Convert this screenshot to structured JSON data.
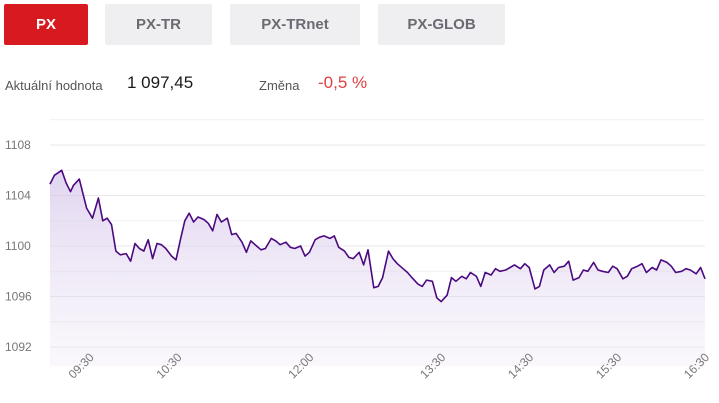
{
  "tabs": [
    {
      "label": "PX",
      "active": true
    },
    {
      "label": "PX-TR",
      "active": false
    },
    {
      "label": "PX-TRnet",
      "active": false
    },
    {
      "label": "PX-GLOB",
      "active": false
    }
  ],
  "summary": {
    "value_label": "Aktuální hodnota",
    "value": "1 097,45",
    "change_label": "Změna",
    "change": "-0,5 %"
  },
  "colors": {
    "accent": "#d71920",
    "line": "#4b0a7f",
    "negative": "#e04040",
    "tab_bg": "#efeff2"
  },
  "chart_data": {
    "type": "area",
    "title": "",
    "xlabel": "",
    "ylabel": "",
    "ylim": [
      1090.5,
      1110
    ],
    "y_ticks": [
      1092,
      1096,
      1100,
      1104,
      1108
    ],
    "x_range": [
      "09:03",
      "16:30"
    ],
    "x_ticks": [
      "09:30",
      "10:30",
      "12:00",
      "13:30",
      "14:30",
      "15:30",
      "16:30"
    ],
    "grid": true,
    "series": [
      {
        "x": [
          "09:03",
          "09:06",
          "09:11",
          "09:14",
          "09:17",
          "09:19",
          "09:23",
          "09:28",
          "09:32",
          "09:36",
          "09:39",
          "09:42",
          "09:45",
          "09:48",
          "09:51",
          "09:55",
          "09:58",
          "10:01",
          "10:04",
          "10:07",
          "10:10",
          "10:13",
          "10:16",
          "10:19",
          "10:22",
          "10:26",
          "10:29",
          "10:32",
          "10:35",
          "10:38",
          "10:41",
          "10:44",
          "10:48",
          "10:51",
          "10:54",
          "10:57",
          "11:00",
          "11:04",
          "11:07",
          "11:10",
          "11:14",
          "11:17",
          "11:20",
          "11:24",
          "11:27",
          "11:30",
          "11:34",
          "11:37",
          "11:40",
          "11:44",
          "11:47",
          "11:50",
          "11:54",
          "11:57",
          "12:00",
          "12:04",
          "12:07",
          "12:10",
          "12:14",
          "12:17",
          "12:20",
          "12:24",
          "12:27",
          "12:30",
          "12:34",
          "12:37",
          "12:40",
          "12:44",
          "12:47",
          "12:50",
          "12:54",
          "12:57",
          "13:00",
          "13:04",
          "13:07",
          "13:10",
          "13:14",
          "13:17",
          "13:20",
          "13:24",
          "13:27",
          "13:30",
          "13:34",
          "13:37",
          "13:40",
          "13:44",
          "13:47",
          "13:50",
          "13:54",
          "13:57",
          "14:00",
          "14:04",
          "14:07",
          "14:10",
          "14:14",
          "14:17",
          "14:20",
          "14:24",
          "14:27",
          "14:30",
          "14:34",
          "14:37",
          "14:40",
          "14:44",
          "14:47",
          "14:50",
          "14:54",
          "14:57",
          "15:00",
          "15:04",
          "15:07",
          "15:10",
          "15:14",
          "15:17",
          "15:20",
          "15:24",
          "15:27",
          "15:30",
          "15:34",
          "15:37",
          "15:40",
          "15:44",
          "15:47",
          "15:50",
          "15:54",
          "15:57",
          "16:00",
          "16:04",
          "16:07",
          "16:10",
          "16:14",
          "16:17",
          "16:20",
          "16:24",
          "16:27",
          "16:30"
        ],
        "y": [
          1104.9,
          1105.6,
          1106.0,
          1105.0,
          1104.3,
          1104.8,
          1105.3,
          1103.0,
          1102.2,
          1103.8,
          1102.0,
          1102.2,
          1101.7,
          1099.6,
          1099.3,
          1099.4,
          1098.8,
          1100.2,
          1099.8,
          1099.6,
          1100.5,
          1099.0,
          1100.2,
          1100.1,
          1099.8,
          1099.2,
          1098.9,
          1100.5,
          1102.0,
          1102.6,
          1101.9,
          1102.3,
          1102.1,
          1101.8,
          1101.2,
          1102.5,
          1101.9,
          1102.2,
          1100.9,
          1101.0,
          1100.3,
          1099.5,
          1100.4,
          1100.0,
          1099.7,
          1099.8,
          1100.6,
          1100.4,
          1100.1,
          1100.3,
          1099.9,
          1099.8,
          1100.0,
          1099.2,
          1099.5,
          1100.5,
          1100.7,
          1100.8,
          1100.6,
          1100.8,
          1099.9,
          1099.6,
          1099.1,
          1099.0,
          1099.5,
          1098.5,
          1099.7,
          1096.7,
          1096.8,
          1097.5,
          1099.6,
          1099.0,
          1098.6,
          1098.2,
          1097.9,
          1097.5,
          1097.0,
          1096.8,
          1097.3,
          1097.2,
          1095.9,
          1095.6,
          1096.1,
          1097.5,
          1097.2,
          1097.6,
          1097.4,
          1097.9,
          1097.6,
          1096.8,
          1097.9,
          1097.7,
          1098.2,
          1098.0,
          1098.1,
          1098.3,
          1098.5,
          1098.2,
          1098.6,
          1098.3,
          1096.6,
          1096.8,
          1098.1,
          1098.5,
          1097.9,
          1098.3,
          1098.4,
          1098.8,
          1097.3,
          1097.5,
          1098.1,
          1098.0,
          1098.7,
          1098.1,
          1098.0,
          1097.9,
          1098.4,
          1098.2,
          1097.4,
          1097.6,
          1098.2,
          1098.4,
          1098.6,
          1097.9,
          1098.3,
          1098.1,
          1098.9,
          1098.7,
          1098.4,
          1097.9,
          1098.0,
          1098.2,
          1098.1,
          1097.8,
          1098.3,
          1097.4
        ]
      }
    ]
  }
}
